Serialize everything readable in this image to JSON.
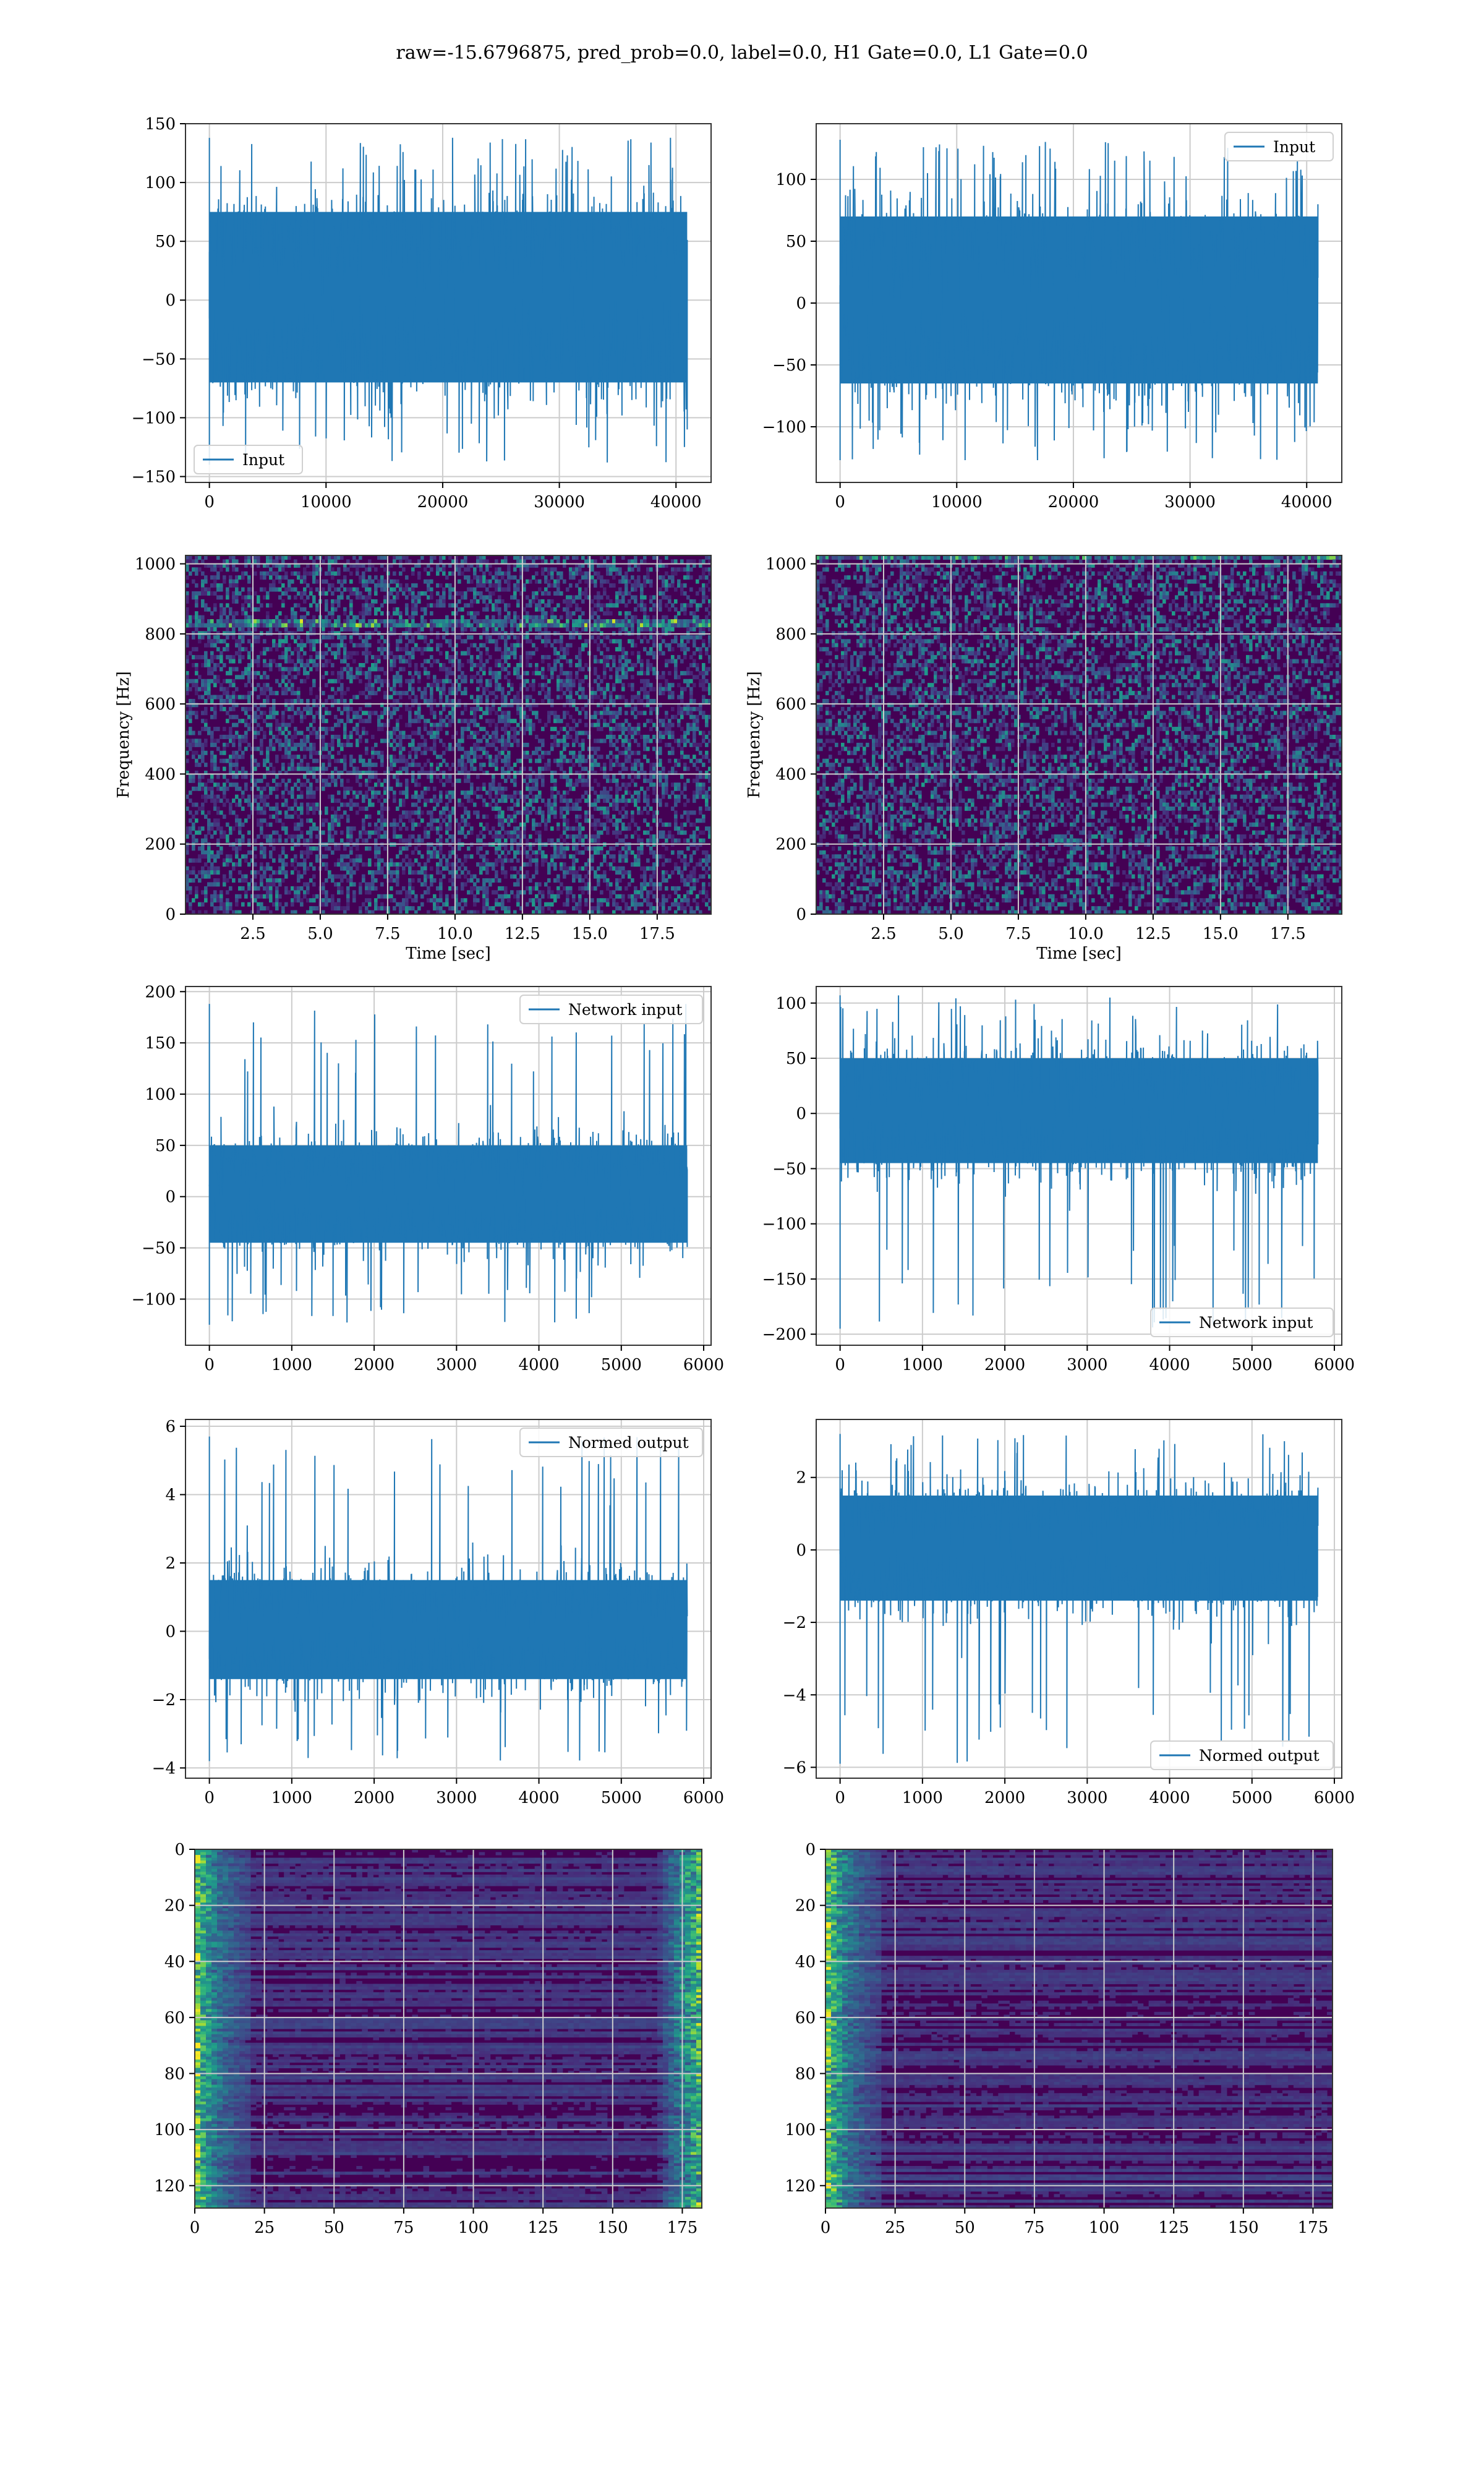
{
  "figure": {
    "title": "raw=-15.6796875, pred_prob=0.0, label=0.0, H1 Gate=0.0, L1 Gate=0.0"
  },
  "colors": {
    "line": "#1f77b4",
    "grid": "#cccccc",
    "spectrogram_base": "#440154"
  },
  "chart_data": [
    {
      "id": "h1-input",
      "type": "line",
      "title": "",
      "xlabel": "",
      "ylabel": "",
      "xlim": [
        -2048,
        43008
      ],
      "ylim": [
        -155,
        150
      ],
      "xticks": [
        0,
        10000,
        20000,
        30000,
        40000
      ],
      "yticks": [
        -150,
        -100,
        -50,
        0,
        50,
        100,
        150
      ],
      "grid": true,
      "legend": "lower-left",
      "series": [
        {
          "name": "Input",
          "x_range": [
            0,
            40960
          ],
          "core_band": [
            -70,
            75
          ],
          "peak_range": [
            -140,
            138
          ]
        }
      ]
    },
    {
      "id": "l1-input",
      "type": "line",
      "title": "",
      "xlabel": "",
      "ylabel": "",
      "xlim": [
        -2048,
        43008
      ],
      "ylim": [
        -145,
        145
      ],
      "xticks": [
        0,
        10000,
        20000,
        30000,
        40000
      ],
      "yticks": [
        -100,
        -50,
        0,
        50,
        100
      ],
      "grid": true,
      "legend": "upper-right",
      "series": [
        {
          "name": "Input",
          "x_range": [
            0,
            40960
          ],
          "core_band": [
            -65,
            70
          ],
          "peak_range": [
            -127,
            132
          ]
        }
      ]
    },
    {
      "id": "h1-spectrogram",
      "type": "heatmap",
      "title": "",
      "xlabel": "Time [sec]",
      "ylabel": "Frequency [Hz]",
      "xlim": [
        0,
        19.5
      ],
      "ylim": [
        0,
        1024
      ],
      "xticks": [
        2.5,
        5.0,
        7.5,
        10.0,
        12.5,
        15.0,
        17.5
      ],
      "yticks": [
        0,
        200,
        400,
        600,
        800,
        1000
      ],
      "grid": true,
      "colormap": "viridis"
    },
    {
      "id": "l1-spectrogram",
      "type": "heatmap",
      "title": "",
      "xlabel": "Time [sec]",
      "ylabel": "Frequency [Hz]",
      "xlim": [
        0,
        19.5
      ],
      "ylim": [
        0,
        1024
      ],
      "xticks": [
        2.5,
        5.0,
        7.5,
        10.0,
        12.5,
        15.0,
        17.5
      ],
      "yticks": [
        0,
        200,
        400,
        600,
        800,
        1000
      ],
      "grid": true,
      "colormap": "viridis"
    },
    {
      "id": "h1-network-input",
      "type": "line",
      "title": "",
      "xlabel": "",
      "ylabel": "",
      "xlim": [
        -290,
        6090
      ],
      "ylim": [
        -145,
        205
      ],
      "xticks": [
        0,
        1000,
        2000,
        3000,
        4000,
        5000,
        6000
      ],
      "yticks": [
        -100,
        -50,
        0,
        50,
        100,
        150,
        200
      ],
      "grid": true,
      "legend": "upper-right",
      "series": [
        {
          "name": "Network input",
          "x_range": [
            0,
            5800
          ],
          "core_band": [
            -45,
            50
          ],
          "peak_range": [
            -125,
            188
          ]
        }
      ]
    },
    {
      "id": "l1-network-input",
      "type": "line",
      "title": "",
      "xlabel": "",
      "ylabel": "",
      "xlim": [
        -290,
        6090
      ],
      "ylim": [
        -210,
        115
      ],
      "xticks": [
        0,
        1000,
        2000,
        3000,
        4000,
        5000,
        6000
      ],
      "yticks": [
        -200,
        -150,
        -100,
        -50,
        0,
        50,
        100
      ],
      "grid": true,
      "legend": "lower-right",
      "series": [
        {
          "name": "Network input",
          "x_range": [
            0,
            5800
          ],
          "core_band": [
            -45,
            50
          ],
          "peak_range": [
            -195,
            107
          ]
        }
      ]
    },
    {
      "id": "h1-normed-output",
      "type": "line",
      "title": "",
      "xlabel": "",
      "ylabel": "",
      "xlim": [
        -290,
        6090
      ],
      "ylim": [
        -4.3,
        6.2
      ],
      "xticks": [
        0,
        1000,
        2000,
        3000,
        4000,
        5000,
        6000
      ],
      "yticks": [
        -4,
        -2,
        0,
        2,
        4,
        6
      ],
      "grid": true,
      "legend": "upper-right",
      "series": [
        {
          "name": "Normed output",
          "x_range": [
            0,
            5800
          ],
          "core_band": [
            -1.4,
            1.5
          ],
          "peak_range": [
            -3.8,
            5.7
          ]
        }
      ]
    },
    {
      "id": "l1-normed-output",
      "type": "line",
      "title": "",
      "xlabel": "",
      "ylabel": "",
      "xlim": [
        -290,
        6090
      ],
      "ylim": [
        -6.3,
        3.6
      ],
      "xticks": [
        0,
        1000,
        2000,
        3000,
        4000,
        5000,
        6000
      ],
      "yticks": [
        -6,
        -4,
        -2,
        0,
        2
      ],
      "grid": true,
      "legend": "lower-right",
      "series": [
        {
          "name": "Normed output",
          "x_range": [
            0,
            5800
          ],
          "core_band": [
            -1.4,
            1.5
          ],
          "peak_range": [
            -5.9,
            3.2
          ]
        }
      ]
    },
    {
      "id": "h1-embedding",
      "type": "heatmap",
      "title": "",
      "xlabel": "",
      "ylabel": "",
      "xlim": [
        0,
        182
      ],
      "ylim": [
        128,
        0
      ],
      "xticks": [
        0,
        25,
        50,
        75,
        100,
        125,
        150,
        175
      ],
      "yticks": [
        0,
        20,
        40,
        60,
        80,
        100,
        120
      ],
      "grid": true,
      "colormap": "viridis"
    },
    {
      "id": "l1-embedding",
      "type": "heatmap",
      "title": "",
      "xlabel": "",
      "ylabel": "",
      "xlim": [
        0,
        182
      ],
      "ylim": [
        128,
        0
      ],
      "xticks": [
        0,
        25,
        50,
        75,
        100,
        125,
        150,
        175
      ],
      "yticks": [
        0,
        20,
        40,
        60,
        80,
        100,
        120
      ],
      "grid": true,
      "colormap": "viridis"
    }
  ]
}
